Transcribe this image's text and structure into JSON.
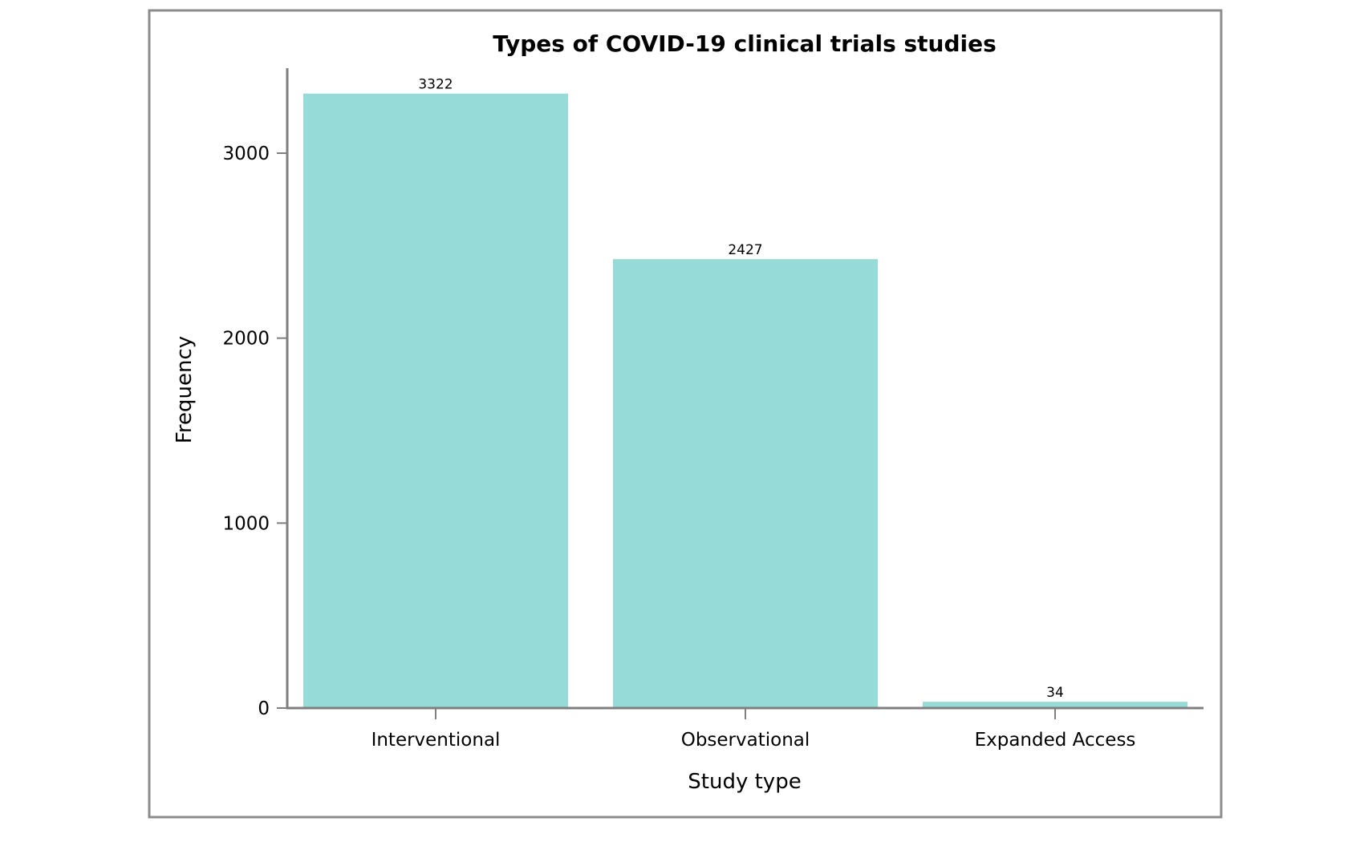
{
  "chart_data": {
    "type": "bar",
    "title": "Types of COVID-19 clinical trials studies",
    "xlabel": "Study type",
    "ylabel": "Frequency",
    "categories": [
      "Interventional",
      "Observational",
      "Expanded Access"
    ],
    "values": [
      3322,
      2427,
      34
    ],
    "data_labels": [
      "3322",
      "2427",
      "34"
    ],
    "ylim": [
      0,
      3450
    ],
    "yticks": [
      0,
      1000,
      2000,
      3000
    ],
    "ytick_labels": [
      "0",
      "1000",
      "2000",
      "3000"
    ],
    "grid": false,
    "legend": "none",
    "bar_color": "#96dbd8",
    "axis_color": "#7f7f7f",
    "frame_color": "#8c8c8c"
  }
}
